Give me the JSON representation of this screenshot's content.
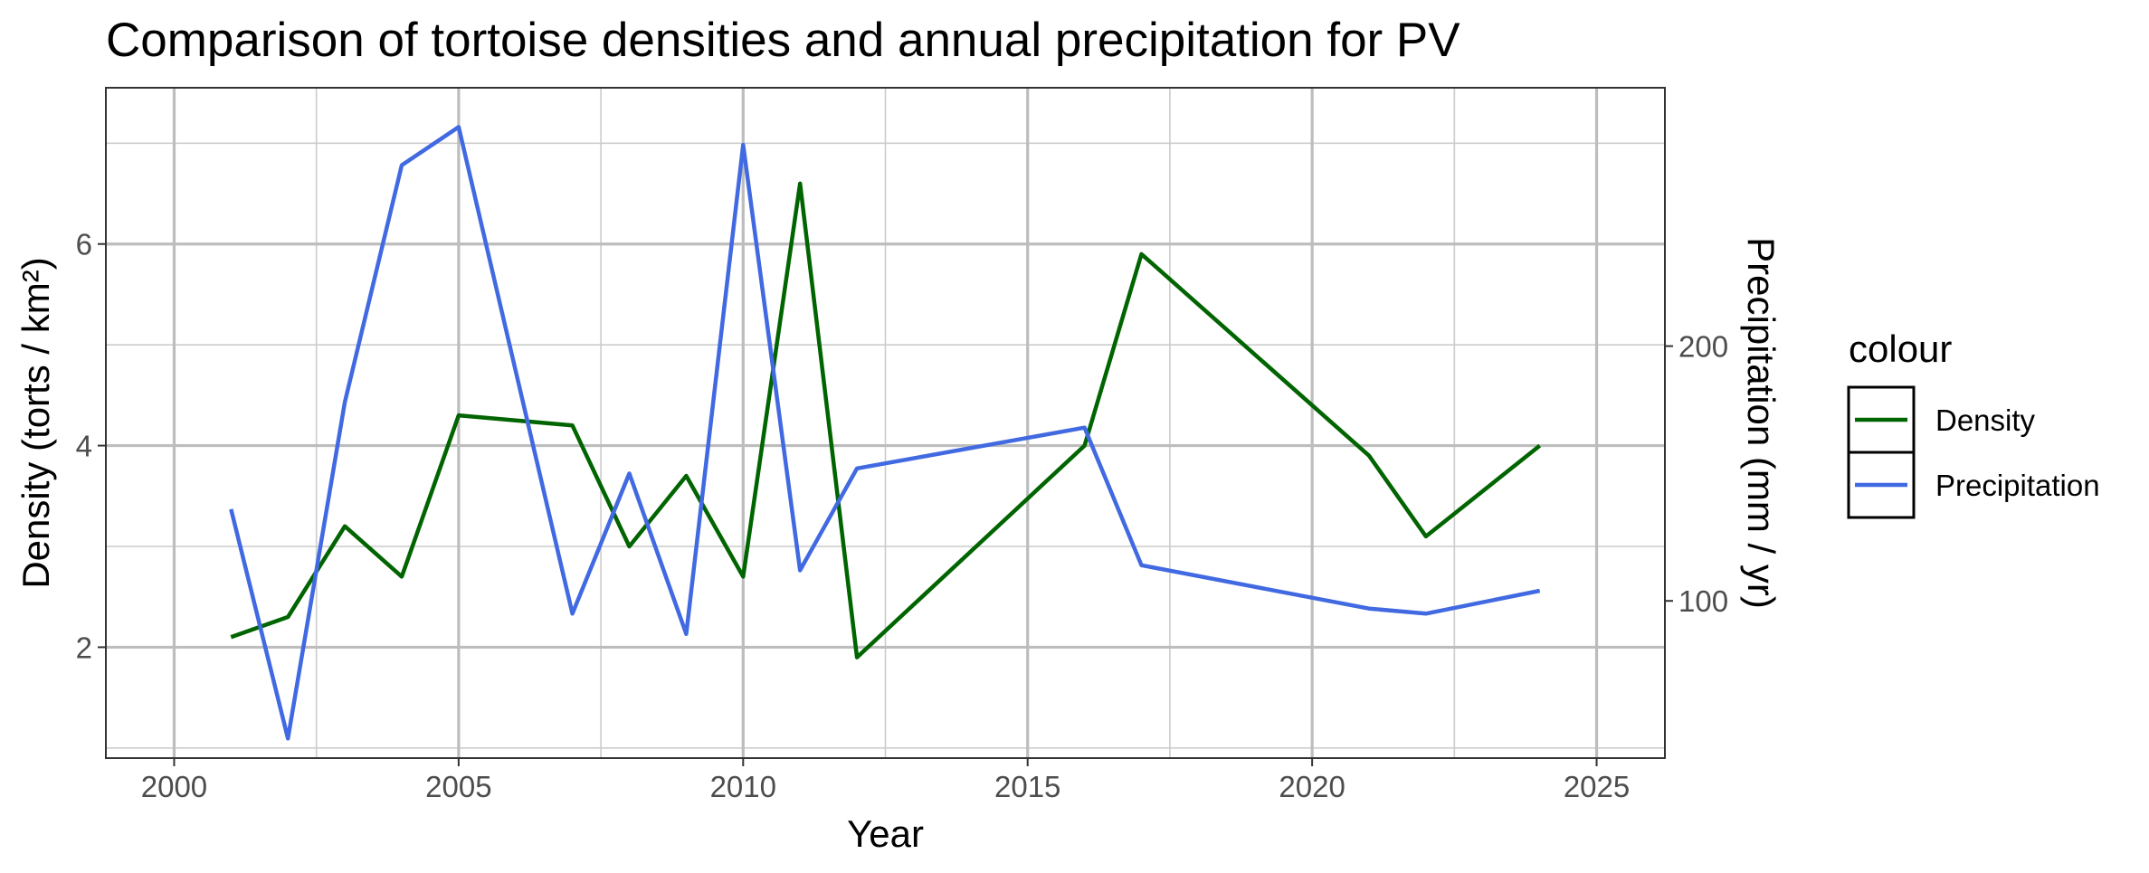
{
  "chart_data": {
    "type": "line",
    "title": "Comparison of tortoise densities and annual precipitation for PV",
    "xlabel": "Year",
    "ylabel": "Density (torts / km²)",
    "y2label": "Precipitation (mm / yr)",
    "xlim": [
      1998.8,
      2026.2
    ],
    "ylim": [
      0.9,
      7.55
    ],
    "y2lim": [
      38.3,
      301.4
    ],
    "x_ticks": [
      2000,
      2005,
      2010,
      2015,
      2020,
      2025
    ],
    "y_ticks": [
      2,
      4,
      6
    ],
    "y2_ticks": [
      100,
      200
    ],
    "grid": true,
    "legend": {
      "title": "colour",
      "placement": "right"
    },
    "series": [
      {
        "name": "Density",
        "axis": "left",
        "color": "#006400",
        "x": [
          2001,
          2002,
          2003,
          2004,
          2005,
          2007,
          2008,
          2009,
          2010,
          2011,
          2012,
          2016,
          2017,
          2021,
          2022,
          2024
        ],
        "y": [
          2.1,
          2.3,
          3.2,
          2.7,
          4.3,
          4.2,
          3.0,
          3.7,
          2.7,
          6.6,
          1.9,
          4.0,
          5.9,
          3.9,
          3.1,
          4.0
        ]
      },
      {
        "name": "Precipitation",
        "axis": "right",
        "color": "#4169E1",
        "x": [
          2001,
          2002,
          2003,
          2004,
          2005,
          2007,
          2008,
          2009,
          2010,
          2011,
          2012,
          2016,
          2017,
          2021,
          2022,
          2024
        ],
        "y": [
          136,
          46,
          178,
          271,
          286,
          95,
          150,
          87,
          279,
          112,
          152,
          168,
          114,
          97,
          95,
          104
        ]
      }
    ]
  }
}
